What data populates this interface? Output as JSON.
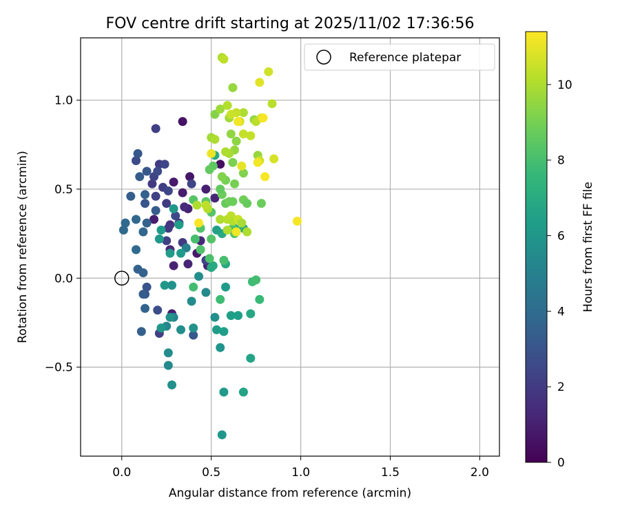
{
  "chart_data": {
    "type": "scatter",
    "title": "FOV centre drift starting at 2025/11/02 17:36:56",
    "xlabel": "Angular distance from reference (arcmin)",
    "ylabel": "Rotation from reference (arcmin)",
    "xlim": [
      -0.23,
      2.11
    ],
    "ylim": [
      -1.0,
      1.35
    ],
    "xticks": [
      0.0,
      0.5,
      1.0,
      1.5,
      2.0
    ],
    "xtick_labels": [
      "0.0",
      "0.5",
      "1.0",
      "1.5",
      "2.0"
    ],
    "yticks": [
      -0.5,
      0.0,
      0.5,
      1.0
    ],
    "ytick_labels": [
      "−0.5",
      "0.0",
      "0.5",
      "1.0"
    ],
    "grid": true,
    "legend": {
      "position": "top-right",
      "label": "Reference platepar"
    },
    "reference_point": {
      "x": 0.0,
      "y": 0.0
    },
    "colorbar": {
      "label": "Hours from first FF file",
      "min": 0,
      "max": 11.4,
      "ticks": [
        0,
        2,
        4,
        6,
        8,
        10
      ],
      "tick_labels": [
        "0",
        "2",
        "4",
        "6",
        "8",
        "10"
      ],
      "colormap": [
        "#440154",
        "#482878",
        "#3e4989",
        "#31688e",
        "#26828e",
        "#1f9e89",
        "#35b779",
        "#6ece58",
        "#b5de2b",
        "#fde725"
      ]
    },
    "points": [
      [
        0.34,
        0.88,
        0.6
      ],
      [
        0.55,
        0.64,
        0.5
      ],
      [
        0.38,
        0.57,
        0.7
      ],
      [
        0.29,
        0.54,
        0.8
      ],
      [
        0.34,
        0.48,
        0.9
      ],
      [
        0.47,
        0.5,
        1.0
      ],
      [
        0.37,
        0.39,
        1.1
      ],
      [
        0.52,
        0.45,
        1.2
      ],
      [
        0.42,
        0.14,
        0.8
      ],
      [
        0.48,
        0.07,
        1.0
      ],
      [
        0.18,
        0.33,
        0.9
      ],
      [
        0.28,
        -0.2,
        0.9
      ],
      [
        0.35,
        0.4,
        1.4
      ],
      [
        0.44,
        0.21,
        1.3
      ],
      [
        0.37,
        0.08,
        1.2
      ],
      [
        0.29,
        0.07,
        1.1
      ],
      [
        0.27,
        0.16,
        1.2
      ],
      [
        0.19,
        0.84,
        2.2
      ],
      [
        0.21,
        0.64,
        2.0
      ],
      [
        0.24,
        0.64,
        2.4
      ],
      [
        0.17,
        0.53,
        2.0
      ],
      [
        0.18,
        0.57,
        2.3
      ],
      [
        0.23,
        0.51,
        2.1
      ],
      [
        0.26,
        0.49,
        2.4
      ],
      [
        0.19,
        0.46,
        2.2
      ],
      [
        0.25,
        0.42,
        2.0
      ],
      [
        0.3,
        0.35,
        2.5
      ],
      [
        0.27,
        0.3,
        1.7
      ],
      [
        0.34,
        0.2,
        2.0
      ],
      [
        0.25,
        0.21,
        2.2
      ],
      [
        0.47,
        0.1,
        2.2
      ],
      [
        0.21,
        -0.31,
        2.2
      ],
      [
        0.2,
        -0.18,
        2.7
      ],
      [
        0.26,
        0.28,
        1.9
      ],
      [
        0.32,
        0.31,
        2.1
      ],
      [
        0.2,
        0.6,
        2.6
      ],
      [
        0.39,
        0.53,
        2.3
      ],
      [
        0.08,
        0.66,
        2.6
      ],
      [
        0.09,
        0.7,
        3.1
      ],
      [
        0.14,
        0.6,
        3.1
      ],
      [
        0.1,
        0.57,
        3.3
      ],
      [
        0.05,
        0.46,
        3.4
      ],
      [
        0.13,
        0.47,
        3.5
      ],
      [
        0.13,
        0.42,
        3.0
      ],
      [
        0.19,
        0.38,
        3.3
      ],
      [
        0.14,
        0.31,
        3.5
      ],
      [
        0.08,
        0.33,
        3.8
      ],
      [
        0.02,
        0.31,
        3.9
      ],
      [
        0.01,
        0.27,
        3.9
      ],
      [
        0.12,
        0.26,
        3.7
      ],
      [
        0.08,
        0.16,
        3.9
      ],
      [
        0.09,
        0.05,
        3.6
      ],
      [
        0.12,
        0.03,
        3.5
      ],
      [
        0.14,
        -0.05,
        3.0
      ],
      [
        0.13,
        -0.09,
        3.0
      ],
      [
        0.12,
        -0.09,
        3.3
      ],
      [
        0.13,
        -0.17,
        3.6
      ],
      [
        0.11,
        -0.3,
        3.5
      ],
      [
        0.4,
        -0.32,
        3.2
      ],
      [
        0.36,
        0.17,
        5.0
      ],
      [
        0.39,
        -0.13,
        5.5
      ],
      [
        0.43,
        0.01,
        5.6
      ],
      [
        0.47,
        -0.08,
        5.4
      ],
      [
        0.4,
        -0.28,
        5.8
      ],
      [
        0.33,
        -0.29,
        5.6
      ],
      [
        0.29,
        -0.22,
        5.2
      ],
      [
        0.25,
        -0.27,
        5.3
      ],
      [
        0.27,
        -0.22,
        5.8
      ],
      [
        0.22,
        -0.28,
        6.0
      ],
      [
        0.26,
        -0.42,
        5.5
      ],
      [
        0.26,
        -0.49,
        5.4
      ],
      [
        0.28,
        -0.6,
        5.7
      ],
      [
        0.24,
        -0.04,
        6.0
      ],
      [
        0.28,
        -0.04,
        5.8
      ],
      [
        0.33,
        0.14,
        6.2
      ],
      [
        0.27,
        0.14,
        6.2
      ],
      [
        0.21,
        0.22,
        6.1
      ],
      [
        0.22,
        0.27,
        6.2
      ],
      [
        0.29,
        0.39,
        6.0
      ],
      [
        0.32,
        0.3,
        6.3
      ],
      [
        0.52,
        -0.22,
        5.7
      ],
      [
        0.55,
        -0.39,
        5.9
      ],
      [
        0.56,
        -0.88,
        6.0
      ],
      [
        0.57,
        -0.64,
        6.2
      ],
      [
        0.57,
        -0.3,
        6.4
      ],
      [
        0.53,
        -0.29,
        6.3
      ],
      [
        0.58,
        -0.05,
        6.2
      ],
      [
        0.61,
        -0.21,
        6.4
      ],
      [
        0.65,
        -0.21,
        6.4
      ],
      [
        0.68,
        -0.64,
        6.6
      ],
      [
        0.72,
        -0.2,
        6.8
      ],
      [
        0.72,
        -0.45,
        6.6
      ],
      [
        0.56,
        0.25,
        6.9
      ],
      [
        0.53,
        0.27,
        6.5
      ],
      [
        0.58,
        0.08,
        6.9
      ],
      [
        0.51,
        0.07,
        6.9
      ],
      [
        0.5,
        0.06,
        6.9
      ],
      [
        0.52,
        0.69,
        7.0
      ],
      [
        0.63,
        0.28,
        7.0
      ],
      [
        0.68,
        0.28,
        7.2
      ],
      [
        0.4,
        -0.05,
        7.9
      ],
      [
        0.55,
        -0.12,
        7.8
      ],
      [
        0.73,
        -0.02,
        7.8
      ],
      [
        0.75,
        -0.01,
        7.9
      ],
      [
        0.77,
        -0.12,
        7.7
      ],
      [
        0.57,
        0.1,
        8.0
      ],
      [
        0.49,
        0.11,
        8.1
      ],
      [
        0.44,
        0.16,
        8.2
      ],
      [
        0.41,
        0.22,
        8.0
      ],
      [
        0.5,
        0.22,
        8.3
      ],
      [
        0.44,
        0.28,
        8.2
      ],
      [
        0.5,
        0.37,
        8.3
      ],
      [
        0.47,
        0.43,
        8.4
      ],
      [
        0.4,
        0.44,
        8.3
      ],
      [
        0.51,
        0.63,
        8.5
      ],
      [
        0.49,
        0.61,
        8.6
      ],
      [
        0.56,
        0.47,
        8.8
      ],
      [
        0.58,
        0.42,
        8.7
      ],
      [
        0.6,
        0.43,
        8.9
      ],
      [
        0.62,
        0.43,
        8.8
      ],
      [
        0.68,
        0.44,
        8.9
      ],
      [
        0.7,
        0.42,
        8.7
      ],
      [
        0.78,
        0.42,
        8.8
      ],
      [
        0.63,
        0.53,
        9.0
      ],
      [
        0.62,
        0.65,
        9.1
      ],
      [
        0.58,
        0.55,
        9.0
      ],
      [
        0.56,
        0.57,
        9.2
      ],
      [
        0.55,
        0.5,
        8.6
      ],
      [
        0.62,
        0.28,
        8.1
      ],
      [
        0.63,
        0.25,
        8.3
      ],
      [
        0.68,
        0.59,
        9.2
      ],
      [
        0.74,
        0.89,
        9.5
      ],
      [
        0.76,
        0.69,
        9.6
      ],
      [
        0.52,
        0.92,
        9.3
      ],
      [
        0.55,
        0.95,
        9.7
      ],
      [
        0.56,
        1.24,
        10.0
      ],
      [
        0.57,
        1.23,
        10.3
      ],
      [
        0.62,
        1.07,
        9.6
      ],
      [
        0.59,
        0.97,
        10.1
      ],
      [
        0.6,
        0.9,
        9.8
      ],
      [
        0.61,
        0.81,
        9.5
      ],
      [
        0.64,
        0.77,
        9.4
      ],
      [
        0.63,
        0.72,
        9.6
      ],
      [
        0.6,
        0.7,
        9.9
      ],
      [
        0.58,
        0.71,
        10.0
      ],
      [
        0.5,
        0.79,
        9.8
      ],
      [
        0.52,
        0.78,
        10.0
      ],
      [
        0.42,
        0.41,
        10.0
      ],
      [
        0.48,
        0.39,
        10.1
      ],
      [
        0.47,
        0.41,
        10.3
      ],
      [
        0.55,
        0.33,
        10.0
      ],
      [
        0.59,
        0.33,
        10.2
      ],
      [
        0.61,
        0.35,
        10.3
      ],
      [
        0.62,
        0.32,
        10.1
      ],
      [
        0.65,
        0.33,
        10.5
      ],
      [
        0.59,
        0.27,
        10.0
      ],
      [
        0.64,
        0.26,
        10.1
      ],
      [
        0.67,
        0.31,
        9.9
      ],
      [
        0.7,
        0.26,
        10.0
      ],
      [
        0.68,
        0.93,
        10.0
      ],
      [
        0.64,
        0.93,
        10.4
      ],
      [
        0.66,
        0.88,
        10.6
      ],
      [
        0.61,
        0.92,
        10.5
      ],
      [
        0.68,
        0.81,
        10.4
      ],
      [
        0.72,
        0.8,
        10.4
      ],
      [
        0.75,
        0.88,
        10.2
      ],
      [
        0.78,
        0.9,
        10.6
      ],
      [
        0.84,
        0.98,
        10.2
      ],
      [
        0.82,
        1.16,
        10.6
      ],
      [
        0.77,
        1.1,
        10.9
      ],
      [
        0.85,
        0.67,
        10.7
      ],
      [
        0.77,
        0.66,
        10.5
      ],
      [
        0.65,
        0.88,
        11.2
      ],
      [
        0.79,
        0.9,
        11.3
      ],
      [
        0.76,
        0.65,
        11.2
      ],
      [
        0.8,
        0.57,
        11.3
      ],
      [
        0.67,
        0.63,
        11.0
      ],
      [
        0.64,
        0.26,
        11.2
      ],
      [
        0.43,
        0.31,
        11.3
      ],
      [
        0.98,
        0.32,
        11.3
      ],
      [
        0.5,
        0.7,
        11.1
      ]
    ]
  }
}
